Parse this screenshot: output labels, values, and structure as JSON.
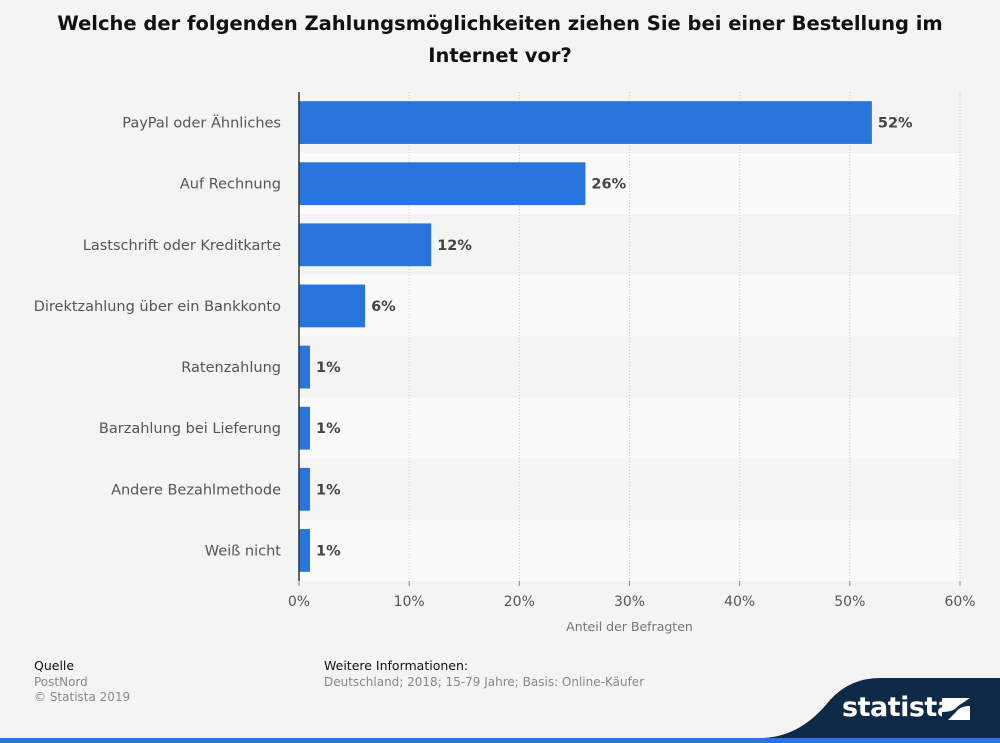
{
  "title": "Welche der folgenden Zahlungsmöglichkeiten ziehen Sie bei einer Bestellung im Internet vor?",
  "chart_data": {
    "type": "bar",
    "orientation": "horizontal",
    "categories": [
      "PayPal oder Ähnliches",
      "Auf Rechnung",
      "Lastschrift oder Kreditkarte",
      "Direktzahlung über ein Bankkonto",
      "Ratenzahlung",
      "Barzahlung bei Lieferung",
      "Andere Bezahlmethode",
      "Weiß nicht"
    ],
    "values": [
      52,
      26,
      12,
      6,
      1,
      1,
      1,
      1
    ],
    "value_labels": [
      "52%",
      "26%",
      "12%",
      "6%",
      "1%",
      "1%",
      "1%",
      "1%"
    ],
    "xlim": [
      0,
      60
    ],
    "xticks": [
      0,
      10,
      20,
      30,
      40,
      50,
      60
    ],
    "xtick_labels": [
      "0%",
      "10%",
      "20%",
      "30%",
      "40%",
      "50%",
      "60%"
    ],
    "xlabel": "Anteil der Befragten",
    "ylabel": "",
    "bar_color": "#2876dd",
    "grid": true
  },
  "source": {
    "heading": "Quelle",
    "name": "PostNord",
    "copyright": "© Statista 2019"
  },
  "info": {
    "heading": "Weitere Informationen:",
    "text": "Deutschland; 2018; 15-79 Jahre; Basis: Online-Käufer"
  },
  "brand": {
    "logo_text": "statista",
    "dark_color": "#0f2a47",
    "accent_color": "#2876dd"
  }
}
